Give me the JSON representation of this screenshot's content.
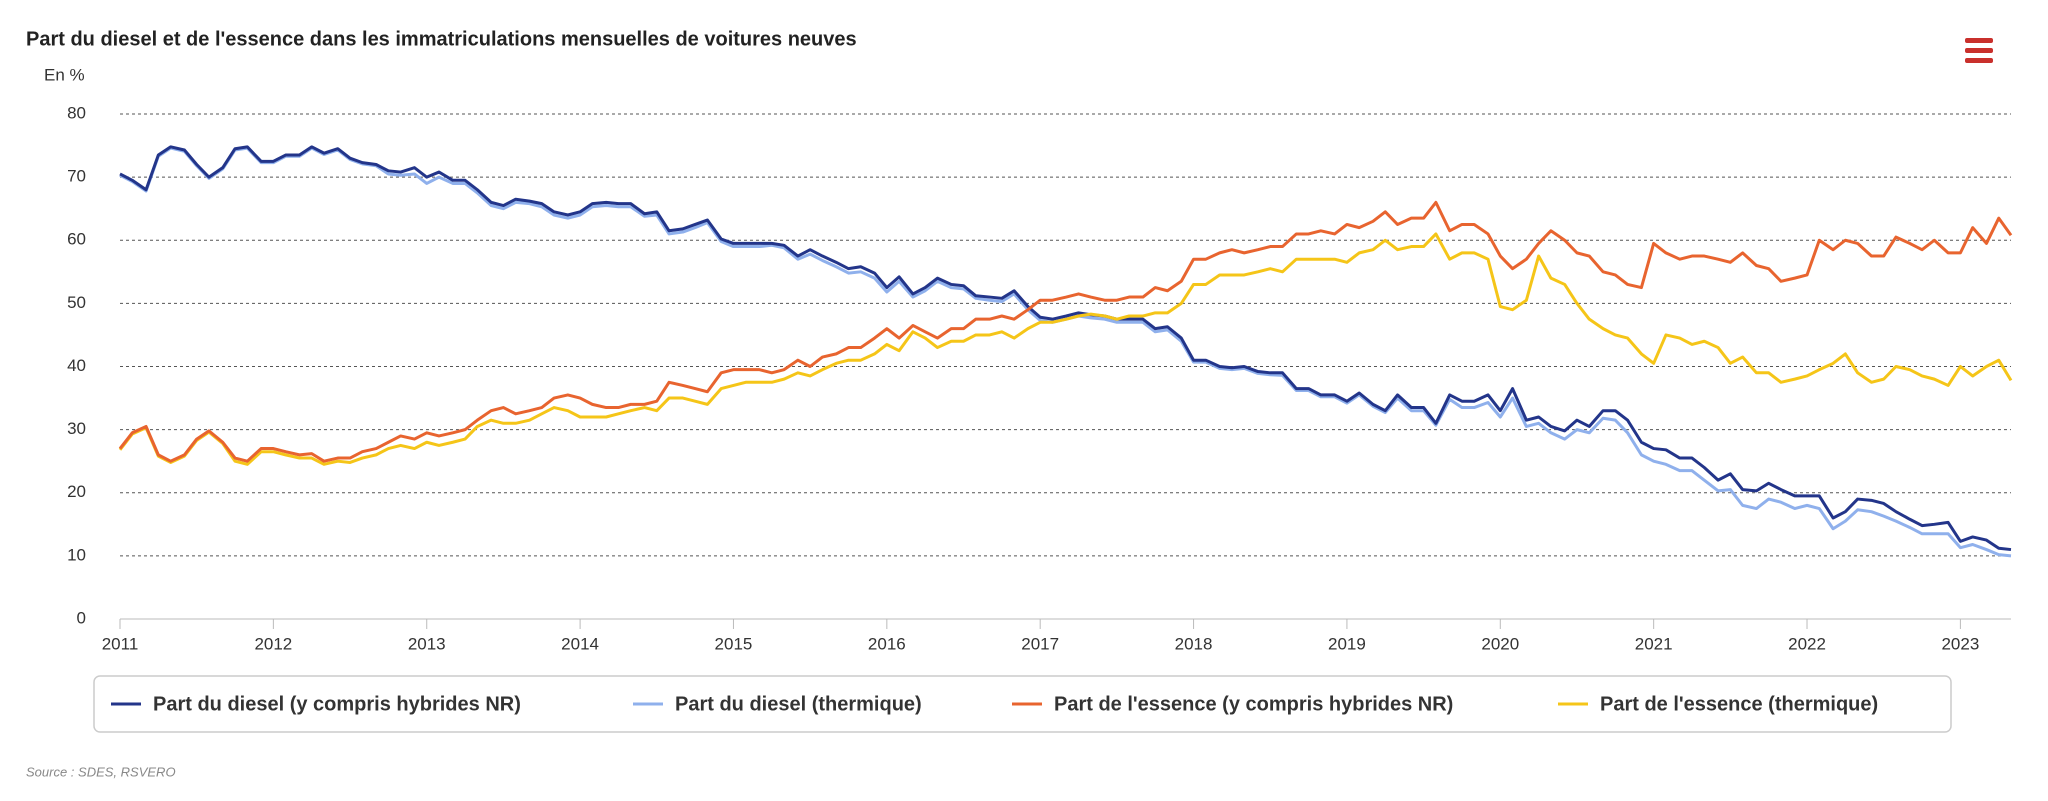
{
  "chart_data": {
    "type": "line",
    "title": "Part du diesel et de l'essence dans les immatriculations mensuelles de voitures neuves",
    "y_label": "En %",
    "source": "Source : SDES, RSVERO",
    "legend": "bottom",
    "grid": true,
    "xlim": [
      2011,
      2023.33
    ],
    "xticks": [
      2011,
      2012,
      2013,
      2014,
      2015,
      2016,
      2017,
      2018,
      2019,
      2020,
      2021,
      2022,
      2023
    ],
    "ylim": [
      0,
      80
    ],
    "yticks": [
      0,
      10,
      20,
      30,
      40,
      50,
      60,
      70,
      80
    ],
    "x": [
      2011,
      2011.08,
      2011.17,
      2011.25,
      2011.33,
      2011.42,
      2011.5,
      2011.58,
      2011.67,
      2011.75,
      2011.83,
      2011.92,
      2012,
      2012.08,
      2012.17,
      2012.25,
      2012.33,
      2012.42,
      2012.5,
      2012.58,
      2012.67,
      2012.75,
      2012.83,
      2012.92,
      2013,
      2013.08,
      2013.17,
      2013.25,
      2013.33,
      2013.42,
      2013.5,
      2013.58,
      2013.67,
      2013.75,
      2013.83,
      2013.92,
      2014,
      2014.08,
      2014.17,
      2014.25,
      2014.33,
      2014.42,
      2014.5,
      2014.58,
      2014.67,
      2014.75,
      2014.83,
      2014.92,
      2015,
      2015.08,
      2015.17,
      2015.25,
      2015.33,
      2015.42,
      2015.5,
      2015.58,
      2015.67,
      2015.75,
      2015.83,
      2015.92,
      2016,
      2016.08,
      2016.17,
      2016.25,
      2016.33,
      2016.42,
      2016.5,
      2016.58,
      2016.67,
      2016.75,
      2016.83,
      2016.92,
      2017,
      2017.08,
      2017.17,
      2017.25,
      2017.33,
      2017.42,
      2017.5,
      2017.58,
      2017.67,
      2017.75,
      2017.83,
      2017.92,
      2018,
      2018.08,
      2018.17,
      2018.25,
      2018.33,
      2018.42,
      2018.5,
      2018.58,
      2018.67,
      2018.75,
      2018.83,
      2018.92,
      2019,
      2019.08,
      2019.17,
      2019.25,
      2019.33,
      2019.42,
      2019.5,
      2019.58,
      2019.67,
      2019.75,
      2019.83,
      2019.92,
      2020,
      2020.08,
      2020.17,
      2020.25,
      2020.33,
      2020.42,
      2020.5,
      2020.58,
      2020.67,
      2020.75,
      2020.83,
      2020.92,
      2021,
      2021.08,
      2021.17,
      2021.25,
      2021.33,
      2021.42,
      2021.5,
      2021.58,
      2021.67,
      2021.75,
      2021.83,
      2021.92,
      2022,
      2022.08,
      2022.17,
      2022.25,
      2022.33,
      2022.42,
      2022.5,
      2022.58,
      2022.67,
      2022.75,
      2022.83,
      2022.92,
      2023,
      2023.08,
      2023.17,
      2023.25,
      2023.33
    ],
    "series": [
      {
        "name": "Part du diesel (y compris hybrides NR)",
        "color": "#23358a",
        "values": [
          70.5,
          69.5,
          68,
          73.5,
          74.8,
          74.3,
          72,
          70,
          71.5,
          74.5,
          74.8,
          72.5,
          72.5,
          73.5,
          73.5,
          74.8,
          73.8,
          74.5,
          73,
          72.3,
          72,
          71,
          70.8,
          71.5,
          70,
          70.8,
          69.5,
          69.5,
          68,
          66,
          65.5,
          66.5,
          66.2,
          65.8,
          64.5,
          64,
          64.5,
          65.8,
          66,
          65.8,
          65.8,
          64.2,
          64.5,
          61.5,
          61.8,
          62.5,
          63.2,
          60.2,
          59.5,
          59.5,
          59.5,
          59.5,
          59.2,
          57.5,
          58.5,
          57.5,
          56.5,
          55.5,
          55.8,
          54.8,
          52.5,
          54.2,
          51.5,
          52.5,
          54,
          53,
          52.8,
          51.2,
          51,
          50.8,
          52,
          49.5,
          47.8,
          47.5,
          48,
          48.5,
          48.2,
          48,
          47.5,
          47.5,
          47.5,
          46,
          46.3,
          44.5,
          41,
          41,
          40,
          39.8,
          40,
          39.2,
          39,
          39,
          36.5,
          36.5,
          35.5,
          35.5,
          34.5,
          35.8,
          34,
          33,
          35.5,
          33.5,
          33.5,
          31,
          35.5,
          34.5,
          34.5,
          35.5,
          33,
          36.5,
          31.5,
          32,
          30.5,
          29.8,
          31.5,
          30.5,
          33,
          33,
          31.5,
          28,
          27,
          26.8,
          25.5,
          25.5,
          24,
          22,
          23,
          20.5,
          20.3,
          21.5,
          20.5,
          19.5,
          19.5,
          19.5,
          16,
          17,
          19,
          18.8,
          18.3,
          17,
          15.8,
          14.8,
          15,
          15.3,
          12.3,
          13,
          12.5,
          11.2,
          11
        ]
      },
      {
        "name": "Part du diesel (thermique)",
        "color": "#8fb0ec",
        "values": [
          70.3,
          69.3,
          67.8,
          73.3,
          74.6,
          74.1,
          71.8,
          69.8,
          71.3,
          74.3,
          74.6,
          72.3,
          72.3,
          73.3,
          73.3,
          74.6,
          73.6,
          74.3,
          72.8,
          72.1,
          71.8,
          70.5,
          70.3,
          70.5,
          69,
          70,
          69,
          69,
          67.5,
          65.5,
          65,
          66,
          65.8,
          65.3,
          64,
          63.5,
          64,
          65.3,
          65.5,
          65.3,
          65.3,
          63.8,
          64,
          61,
          61.3,
          62,
          62.8,
          59.8,
          59,
          59,
          59,
          59.2,
          58.8,
          57,
          57.8,
          56.8,
          55.8,
          54.8,
          55,
          54,
          51.8,
          53.5,
          51,
          52,
          53.5,
          52.5,
          52.3,
          50.8,
          50.5,
          50.3,
          51.5,
          49,
          47.3,
          47,
          47.5,
          48,
          47.7,
          47.5,
          47,
          47,
          47,
          45.5,
          45.8,
          44,
          40.7,
          40.7,
          39.7,
          39.5,
          39.7,
          38.9,
          38.7,
          38.6,
          36.2,
          36.2,
          35.2,
          35.2,
          34.2,
          35.5,
          33.7,
          32.7,
          35,
          33,
          33,
          30.7,
          34.8,
          33.5,
          33.5,
          34.3,
          32,
          35,
          30.5,
          31,
          29.5,
          28.5,
          30,
          29.5,
          31.8,
          31.5,
          29.5,
          26,
          25,
          24.5,
          23.5,
          23.5,
          22,
          20.3,
          20.5,
          18,
          17.5,
          19,
          18.5,
          17.5,
          18,
          17.5,
          14.3,
          15.5,
          17.3,
          17,
          16.3,
          15.5,
          14.5,
          13.5,
          13.5,
          13.5,
          11.3,
          11.8,
          11,
          10.2,
          10
        ]
      },
      {
        "name": "Part de l'essence (y compris hybrides NR)",
        "color": "#e8642f",
        "values": [
          27,
          29.5,
          30.5,
          26,
          25,
          26,
          28.5,
          29.8,
          28,
          25.5,
          25,
          27,
          27,
          26.5,
          26,
          26.2,
          25,
          25.5,
          25.5,
          26.5,
          27,
          28,
          29,
          28.5,
          29.5,
          29,
          29.5,
          30,
          31.5,
          33,
          33.5,
          32.5,
          33,
          33.5,
          35,
          35.5,
          35,
          34,
          33.5,
          33.5,
          34,
          34,
          34.5,
          37.5,
          37,
          36.5,
          36,
          39,
          39.5,
          39.5,
          39.5,
          39,
          39.5,
          41,
          40,
          41.5,
          42,
          43,
          43,
          44.5,
          46,
          44.5,
          46.5,
          45.5,
          44.5,
          46,
          46,
          47.5,
          47.5,
          48,
          47.5,
          49,
          50.5,
          50.5,
          51,
          51.5,
          51,
          50.5,
          50.5,
          51,
          51,
          52.5,
          52,
          53.5,
          57,
          57,
          58,
          58.5,
          58,
          58.5,
          59,
          59,
          61,
          61,
          61.5,
          61,
          62.5,
          62,
          63,
          64.5,
          62.5,
          63.5,
          63.5,
          66,
          61.5,
          62.5,
          62.5,
          61,
          57.5,
          55.5,
          57,
          59.5,
          61.5,
          60,
          58,
          57.5,
          55,
          54.5,
          53,
          52.5,
          59.5,
          58,
          57,
          57.5,
          57.5,
          57,
          56.5,
          58,
          56,
          55.5,
          53.5,
          54,
          54.5,
          60,
          58.5,
          60,
          59.5,
          57.5,
          57.5,
          60.5,
          59.5,
          58.5,
          60,
          58,
          58,
          62,
          59.5,
          63.5,
          60.8
        ]
      },
      {
        "name": "Part de l'essence (thermique)",
        "color": "#f5c518",
        "values": [
          26.8,
          29.3,
          30.3,
          25.8,
          24.8,
          25.8,
          28.3,
          29.6,
          27.8,
          25,
          24.5,
          26.5,
          26.5,
          26,
          25.5,
          25.5,
          24.5,
          25,
          24.8,
          25.5,
          26,
          27,
          27.5,
          27,
          28,
          27.5,
          28,
          28.5,
          30.5,
          31.5,
          31,
          31,
          31.5,
          32.5,
          33.5,
          33,
          32,
          32,
          32,
          32.5,
          33,
          33.5,
          33,
          35,
          35,
          34.5,
          34,
          36.5,
          37,
          37.5,
          37.5,
          37.5,
          38,
          39,
          38.5,
          39.5,
          40.5,
          41,
          41,
          42,
          43.5,
          42.5,
          45.5,
          44.5,
          43,
          44,
          44,
          45,
          45,
          45.5,
          44.5,
          46,
          47,
          47,
          47.5,
          48,
          48.3,
          48,
          47.5,
          48,
          48,
          48.5,
          48.5,
          50,
          53,
          53,
          54.5,
          54.5,
          54.5,
          55,
          55.5,
          55,
          57,
          57,
          57,
          57,
          56.5,
          58,
          58.5,
          60,
          58.5,
          59,
          59,
          61,
          57,
          58,
          58,
          57,
          49.5,
          49,
          50.5,
          57.5,
          54,
          53,
          50,
          47.5,
          46,
          45,
          44.5,
          42,
          40.5,
          45,
          44.5,
          43.5,
          44,
          43,
          40.5,
          41.5,
          39,
          39,
          37.5,
          38,
          38.5,
          39.5,
          40.5,
          42,
          39,
          37.5,
          38,
          40,
          39.5,
          38.5,
          38,
          37,
          40,
          38.5,
          40,
          41,
          37.8
        ]
      }
    ]
  }
}
